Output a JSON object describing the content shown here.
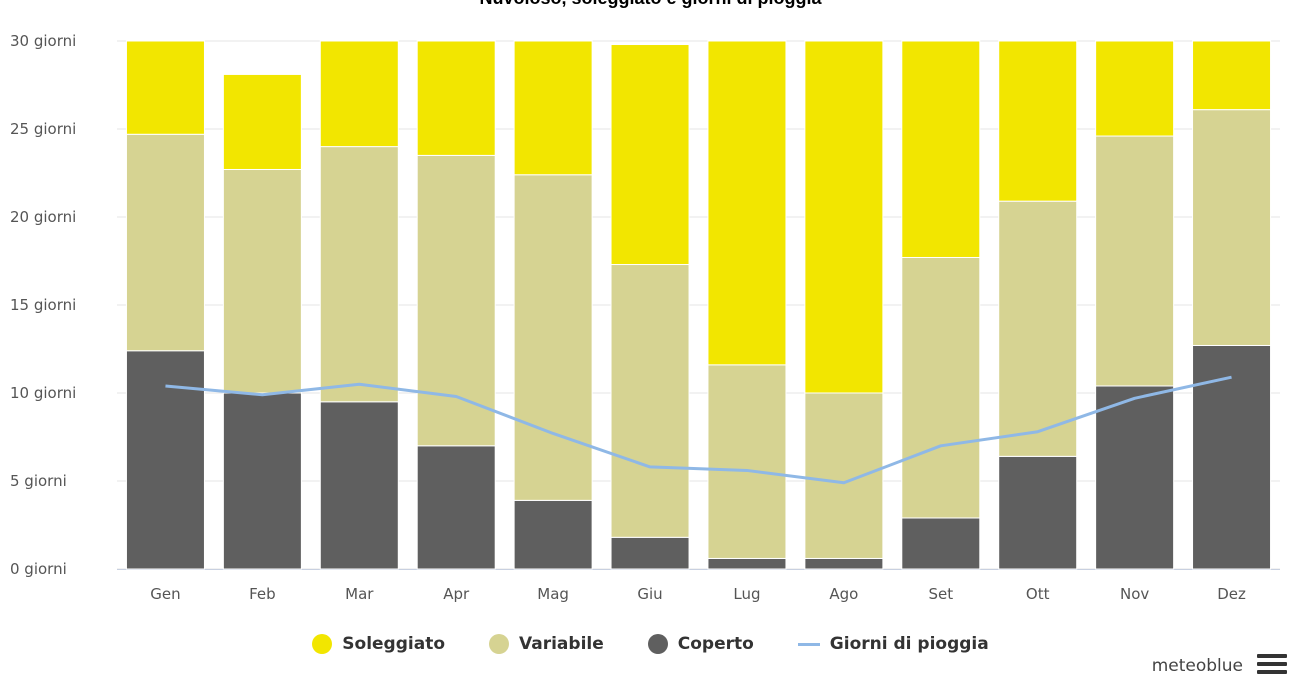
{
  "title": "Nuvoloso, soleggiato e giorni di pioggia",
  "brand": "meteoblue",
  "chart_data": {
    "type": "bar",
    "stacked": true,
    "categories": [
      "Gen",
      "Feb",
      "Mar",
      "Apr",
      "Mag",
      "Giu",
      "Lug",
      "Ago",
      "Set",
      "Ott",
      "Nov",
      "Dez"
    ],
    "ylim": [
      0,
      30
    ],
    "yticks": [
      {
        "value": 0,
        "label": "0 giorni"
      },
      {
        "value": 5,
        "label": "5 giorni"
      },
      {
        "value": 10,
        "label": "10 giorni"
      },
      {
        "value": 15,
        "label": "15 giorni"
      },
      {
        "value": 20,
        "label": "20 giorni"
      },
      {
        "value": 25,
        "label": "25 giorni"
      },
      {
        "value": 30,
        "label": "30 giorni"
      }
    ],
    "grid": true,
    "legend_position": "bottom-center",
    "series": [
      {
        "name": "Coperto",
        "kind": "bar",
        "color": "#5f5f5f",
        "values": [
          12.4,
          10.0,
          9.5,
          7.0,
          3.9,
          1.8,
          0.6,
          0.6,
          2.9,
          6.4,
          10.4,
          12.7
        ]
      },
      {
        "name": "Variabile",
        "kind": "bar",
        "color": "#d6d392",
        "values": [
          12.3,
          12.7,
          14.5,
          16.5,
          18.5,
          15.5,
          11.0,
          9.4,
          14.8,
          14.5,
          14.2,
          13.4
        ]
      },
      {
        "name": "Soleggiato",
        "kind": "bar",
        "color": "#f2e600",
        "values": [
          6.3,
          5.4,
          7.0,
          7.5,
          8.6,
          12.5,
          19.4,
          21.0,
          13.3,
          10.1,
          6.4,
          4.9
        ]
      },
      {
        "name": "Giorni di pioggia",
        "kind": "line",
        "color": "#8fb8e6",
        "values": [
          10.4,
          9.9,
          10.5,
          9.8,
          7.7,
          5.8,
          5.6,
          4.9,
          7.0,
          7.8,
          9.7,
          10.9
        ]
      }
    ],
    "legend_order": [
      "Soleggiato",
      "Variabile",
      "Coperto",
      "Giorni di pioggia"
    ]
  }
}
